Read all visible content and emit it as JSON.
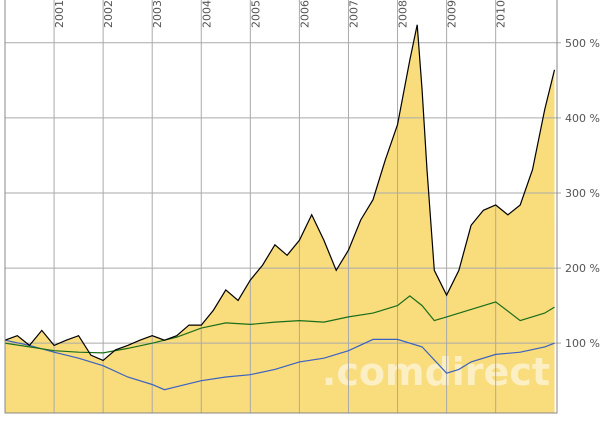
{
  "chart_data": {
    "type": "line",
    "watermark": ".comdirect",
    "xlim": [
      2000,
      2011.25
    ],
    "xticks": [
      2001,
      2002,
      2003,
      2004,
      2005,
      2006,
      2007,
      2008,
      2009,
      2010
    ],
    "ylim": [
      7,
      557
    ],
    "yticks": [
      {
        "value": 100,
        "label": "100 %"
      },
      {
        "value": 200,
        "label": "200 %"
      },
      {
        "value": 300,
        "label": "300 %"
      },
      {
        "value": 400,
        "label": "400 %"
      },
      {
        "value": 500,
        "label": "500 %"
      }
    ],
    "grid": true,
    "series": [
      {
        "color": "#000000",
        "fill": "#f9dc7c",
        "x": [
          2000.0,
          2000.25,
          2000.5,
          2000.75,
          2001.0,
          2001.25,
          2001.5,
          2001.75,
          2002.0,
          2002.25,
          2002.5,
          2002.75,
          2003.0,
          2003.25,
          2003.5,
          2003.75,
          2004.0,
          2004.25,
          2004.5,
          2004.75,
          2005.0,
          2005.25,
          2005.5,
          2005.75,
          2006.0,
          2006.25,
          2006.5,
          2006.75,
          2007.0,
          2007.25,
          2007.5,
          2007.75,
          2008.0,
          2008.25,
          2008.4,
          2008.5,
          2008.6,
          2008.75,
          2009.0,
          2009.25,
          2009.5,
          2009.75,
          2010.0,
          2010.25,
          2010.5,
          2010.75,
          2011.0,
          2011.2
        ],
        "values": [
          104,
          110,
          97,
          117,
          97,
          104,
          110,
          84,
          77,
          91,
          97,
          104,
          110,
          104,
          110,
          124,
          124,
          144,
          171,
          157,
          184,
          204,
          231,
          217,
          237,
          271,
          237,
          197,
          224,
          264,
          291,
          344,
          391,
          477,
          524,
          437,
          331,
          197,
          164,
          197,
          257,
          277,
          284,
          271,
          284,
          331,
          411,
          464
        ]
      },
      {
        "color": "#1a6e1a",
        "x": [
          2000.0,
          2000.5,
          2001.0,
          2001.5,
          2002.0,
          2002.5,
          2003.0,
          2003.5,
          2004.0,
          2004.5,
          2005.0,
          2005.5,
          2006.0,
          2006.5,
          2007.0,
          2007.5,
          2008.0,
          2008.25,
          2008.5,
          2008.75,
          2009.0,
          2009.5,
          2010.0,
          2010.5,
          2011.0,
          2011.2
        ],
        "values": [
          100,
          95,
          90,
          88,
          87,
          93,
          100,
          108,
          120,
          127,
          125,
          128,
          130,
          128,
          135,
          140,
          150,
          163,
          150,
          130,
          135,
          145,
          155,
          130,
          140,
          148
        ]
      },
      {
        "color": "#3a62c0",
        "x": [
          2000.0,
          2000.5,
          2001.0,
          2001.5,
          2002.0,
          2002.5,
          2003.0,
          2003.25,
          2003.5,
          2004.0,
          2004.5,
          2005.0,
          2005.5,
          2006.0,
          2006.5,
          2007.0,
          2007.5,
          2008.0,
          2008.5,
          2009.0,
          2009.25,
          2009.5,
          2010.0,
          2010.5,
          2011.0,
          2011.2
        ],
        "values": [
          104,
          97,
          88,
          80,
          70,
          55,
          45,
          38,
          42,
          50,
          55,
          58,
          65,
          75,
          80,
          90,
          105,
          105,
          95,
          60,
          65,
          75,
          85,
          88,
          95,
          100
        ]
      }
    ]
  }
}
